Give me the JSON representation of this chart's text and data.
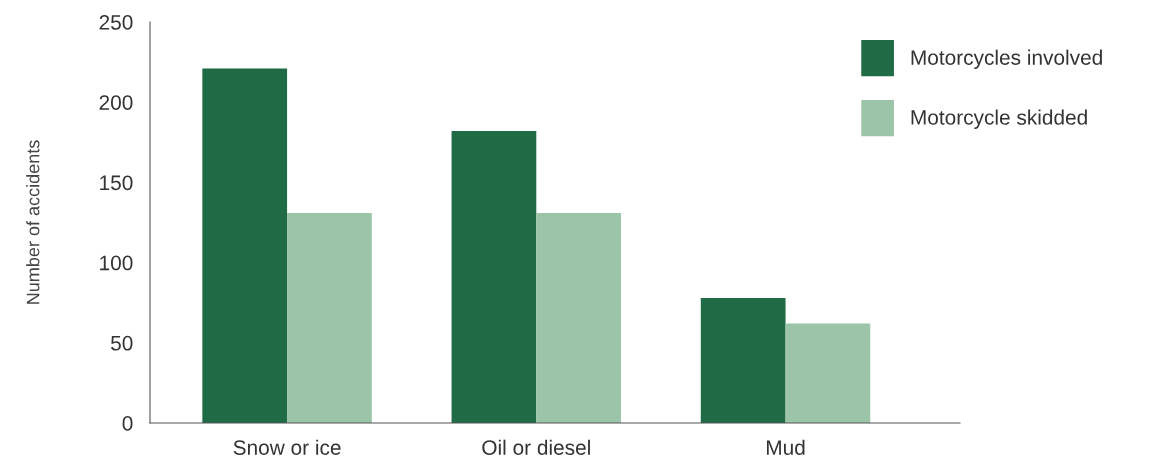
{
  "chart_data": {
    "type": "bar",
    "ylabel": "Number of accidents",
    "categories": [
      "Snow or ice",
      "Oil or diesel",
      "Mud"
    ],
    "series": [
      {
        "name": "Motorcycles involved",
        "color": "#1e6b45",
        "values": [
          221,
          182,
          78
        ]
      },
      {
        "name": "Motorcycle skidded",
        "color": "#9cc4a8",
        "values": [
          131,
          131,
          62
        ]
      }
    ],
    "ylim": [
      0,
      250
    ],
    "yticks": [
      0,
      50,
      100,
      150,
      200,
      250
    ],
    "grid": false,
    "legend": "top right"
  }
}
